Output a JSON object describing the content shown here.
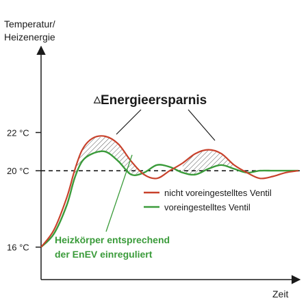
{
  "chart_data": {
    "type": "line",
    "ylabel": "Temperatur/\nHeizenergie",
    "xlabel": "Zeit",
    "y_ticks": [
      {
        "value": 16,
        "label": "16 °C"
      },
      {
        "value": 20,
        "label": "20 °C"
      },
      {
        "value": 22,
        "label": "22 °C"
      }
    ],
    "ylim": [
      14.3,
      26.5
    ],
    "xlim": [
      0,
      10
    ],
    "reference_line": {
      "value": 20,
      "style": "dashed"
    },
    "annotation_title": "Energieersparnis",
    "annotation_symbol": "△",
    "annotation_note": [
      "Heizkörper entsprechend",
      "der EnEV einreguliert"
    ],
    "series": [
      {
        "name": "nicht voreingestelltes Ventil",
        "color": "#c8412b",
        "x": [
          0,
          0.5,
          1.0,
          1.3,
          1.6,
          2.0,
          2.5,
          3.0,
          3.5,
          4.0,
          4.5,
          5.0,
          5.5,
          6.0,
          6.5,
          7.0,
          7.5,
          8.0,
          8.5,
          9.0,
          9.5,
          10.0
        ],
        "y": [
          16.0,
          16.9,
          18.6,
          20.0,
          21.1,
          21.7,
          21.8,
          21.4,
          20.5,
          19.8,
          19.6,
          20.0,
          20.4,
          20.9,
          21.1,
          20.9,
          20.3,
          19.9,
          19.6,
          19.7,
          19.9,
          20.0
        ]
      },
      {
        "name": "voreingestelltes Ventil",
        "color": "#3a9b3a",
        "x": [
          0,
          0.5,
          1.0,
          1.3,
          1.6,
          2.0,
          2.5,
          3.0,
          3.5,
          4.0,
          4.5,
          5.0,
          5.5,
          6.0,
          6.5,
          7.0,
          7.5,
          8.0,
          8.5,
          9.0,
          9.5,
          10.0
        ],
        "y": [
          16.0,
          16.7,
          18.2,
          19.6,
          20.5,
          20.9,
          21.0,
          20.5,
          19.8,
          19.9,
          20.3,
          20.2,
          19.9,
          19.8,
          20.1,
          20.3,
          20.1,
          19.9,
          20.0,
          20.0,
          20.0,
          20.0
        ]
      }
    ],
    "grid": false,
    "legend_position": "center-right"
  },
  "colors": {
    "axis": "#1a1a1a",
    "note": "#3a9b3a",
    "hatch": "#555555"
  }
}
